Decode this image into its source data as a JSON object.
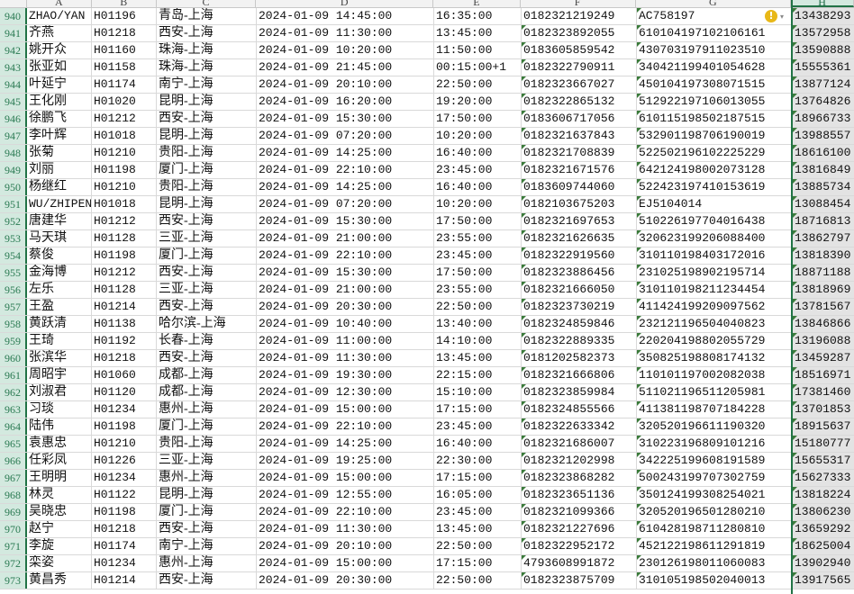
{
  "columns": [
    "",
    "A",
    "B",
    "C",
    "D",
    "E",
    "F",
    "G",
    "H"
  ],
  "selected_column": "H",
  "warning_icon": "!",
  "rows": [
    [
      "940",
      "ZHAO/YAN",
      "H01196",
      "青岛-上海",
      "2024-01-09  14:45:00",
      "16:35:00",
      "0182321219249",
      "AC758197",
      "13438293"
    ],
    [
      "941",
      "齐燕",
      "H01218",
      "西安-上海",
      "2024-01-09  11:30:00",
      "13:45:00",
      "0182323892055",
      "610104197102106161",
      "13572958"
    ],
    [
      "942",
      "姚开众",
      "H01160",
      "珠海-上海",
      "2024-01-09  10:20:00",
      "11:50:00",
      "0183605859542",
      "430703197911023510",
      "13590888"
    ],
    [
      "943",
      "张亚如",
      "H01158",
      "珠海-上海",
      "2024-01-09  21:45:00",
      "00:15:00+1",
      "0182322790911",
      "340421199401054628",
      "15555361"
    ],
    [
      "944",
      "叶延宁",
      "H01174",
      "南宁-上海",
      "2024-01-09  20:10:00",
      "22:50:00",
      "0182323667027",
      "450104197308071515",
      "13877124"
    ],
    [
      "945",
      "王化刚",
      "H01020",
      "昆明-上海",
      "2024-01-09  16:20:00",
      "19:20:00",
      "0182322865132",
      "512922197106013055",
      "13764826"
    ],
    [
      "946",
      "徐鹏飞",
      "H01212",
      "西安-上海",
      "2024-01-09  15:30:00",
      "17:50:00",
      "0183606717056",
      "610115198502187515",
      "18966733"
    ],
    [
      "947",
      "李叶辉",
      "H01018",
      "昆明-上海",
      "2024-01-09  07:20:00",
      "10:20:00",
      "0182321637843",
      "532901198706190019",
      "13988557"
    ],
    [
      "948",
      "张菊",
      "H01210",
      "贵阳-上海",
      "2024-01-09  14:25:00",
      "16:40:00",
      "0182321708839",
      "522502196102225229",
      "18616100"
    ],
    [
      "949",
      "刘丽",
      "H01198",
      "厦门-上海",
      "2024-01-09  22:10:00",
      "23:45:00",
      "0182321671576",
      "642124198002073128",
      "13816849"
    ],
    [
      "950",
      "杨继红",
      "H01210",
      "贵阳-上海",
      "2024-01-09  14:25:00",
      "16:40:00",
      "0183609744060",
      "522423197410153619",
      "13885734"
    ],
    [
      "951",
      "WU/ZHIPEN",
      "H01018",
      "昆明-上海",
      "2024-01-09  07:20:00",
      "10:20:00",
      "0182103675203",
      "EJ5104014",
      "13088454"
    ],
    [
      "952",
      "唐建华",
      "H01212",
      "西安-上海",
      "2024-01-09  15:30:00",
      "17:50:00",
      "0182321697653",
      "510226197704016438",
      "18716813"
    ],
    [
      "953",
      "马天琪",
      "H01128",
      "三亚-上海",
      "2024-01-09  21:00:00",
      "23:55:00",
      "0182321626635",
      "320623199206088400",
      "13862797"
    ],
    [
      "954",
      "蔡俊",
      "H01198",
      "厦门-上海",
      "2024-01-09  22:10:00",
      "23:45:00",
      "0182322919560",
      "310110198403172016",
      "13818390"
    ],
    [
      "955",
      "金海博",
      "H01212",
      "西安-上海",
      "2024-01-09  15:30:00",
      "17:50:00",
      "0182323886456",
      "231025198902195714",
      "18871188"
    ],
    [
      "956",
      "左乐",
      "H01128",
      "三亚-上海",
      "2024-01-09  21:00:00",
      "23:55:00",
      "0182321666050",
      "310110198211234454",
      "13818969"
    ],
    [
      "957",
      "王盈",
      "H01214",
      "西安-上海",
      "2024-01-09  20:30:00",
      "22:50:00",
      "0182323730219",
      "411424199209097562",
      "13781567"
    ],
    [
      "958",
      "黄跃清",
      "H01138",
      "哈尔滨-上海",
      "2024-01-09  10:40:00",
      "13:40:00",
      "0182324859846",
      "232121196504040823",
      "13846866"
    ],
    [
      "959",
      "王琦",
      "H01192",
      "长春-上海",
      "2024-01-09  11:00:00",
      "14:10:00",
      "0182322889335",
      "220204198802055729",
      "13196088"
    ],
    [
      "960",
      "张滨华",
      "H01218",
      "西安-上海",
      "2024-01-09  11:30:00",
      "13:45:00",
      "0181202582373",
      "350825198808174132",
      "13459287"
    ],
    [
      "961",
      "周昭宇",
      "H01060",
      "成都-上海",
      "2024-01-09  19:30:00",
      "22:15:00",
      "0182321666806",
      "110101197002082038",
      "18516971"
    ],
    [
      "962",
      "刘淑君",
      "H01120",
      "成都-上海",
      "2024-01-09  12:30:00",
      "15:10:00",
      "0182323859984",
      "511021196511205981",
      "17381460"
    ],
    [
      "963",
      "习琰",
      "H01234",
      "惠州-上海",
      "2024-01-09  15:00:00",
      "17:15:00",
      "0182324855566",
      "411381198707184228",
      "13701853"
    ],
    [
      "964",
      "陆伟",
      "H01198",
      "厦门-上海",
      "2024-01-09  22:10:00",
      "23:45:00",
      "0182322633342",
      "320520196611190320",
      "18915637"
    ],
    [
      "965",
      "袁惠忠",
      "H01210",
      "贵阳-上海",
      "2024-01-09  14:25:00",
      "16:40:00",
      "0182321686007",
      "310223196809101216",
      "15180777"
    ],
    [
      "966",
      "任彩凤",
      "H01226",
      "三亚-上海",
      "2024-01-09  19:25:00",
      "22:30:00",
      "0182321202998",
      "342225199608191589",
      "15655317"
    ],
    [
      "967",
      "王明明",
      "H01234",
      "惠州-上海",
      "2024-01-09  15:00:00",
      "17:15:00",
      "0182323868282",
      "500243199707302759",
      "15627333"
    ],
    [
      "968",
      "林灵",
      "H01122",
      "昆明-上海",
      "2024-01-09  12:55:00",
      "16:05:00",
      "0182323651136",
      "350124199308254021",
      "13818224"
    ],
    [
      "969",
      "吴晓忠",
      "H01198",
      "厦门-上海",
      "2024-01-09  22:10:00",
      "23:45:00",
      "0182321099366",
      "320520196501280210",
      "13806230"
    ],
    [
      "970",
      "赵宁",
      "H01218",
      "西安-上海",
      "2024-01-09  11:30:00",
      "13:45:00",
      "0182321227696",
      "610428198711280810",
      "13659292"
    ],
    [
      "971",
      "李旋",
      "H01174",
      "南宁-上海",
      "2024-01-09  20:10:00",
      "22:50:00",
      "0182322952172",
      "452122198611291819",
      "18625004"
    ],
    [
      "972",
      "栾姿",
      "H01234",
      "惠州-上海",
      "2024-01-09  15:00:00",
      "17:15:00",
      "4793608991872",
      "230126198011060083",
      "13902940"
    ],
    [
      "973",
      "黄昌秀",
      "H01214",
      "西安-上海",
      "2024-01-09  20:30:00",
      "22:50:00",
      "0182323875709",
      "310105198502040013",
      "13917565"
    ]
  ]
}
